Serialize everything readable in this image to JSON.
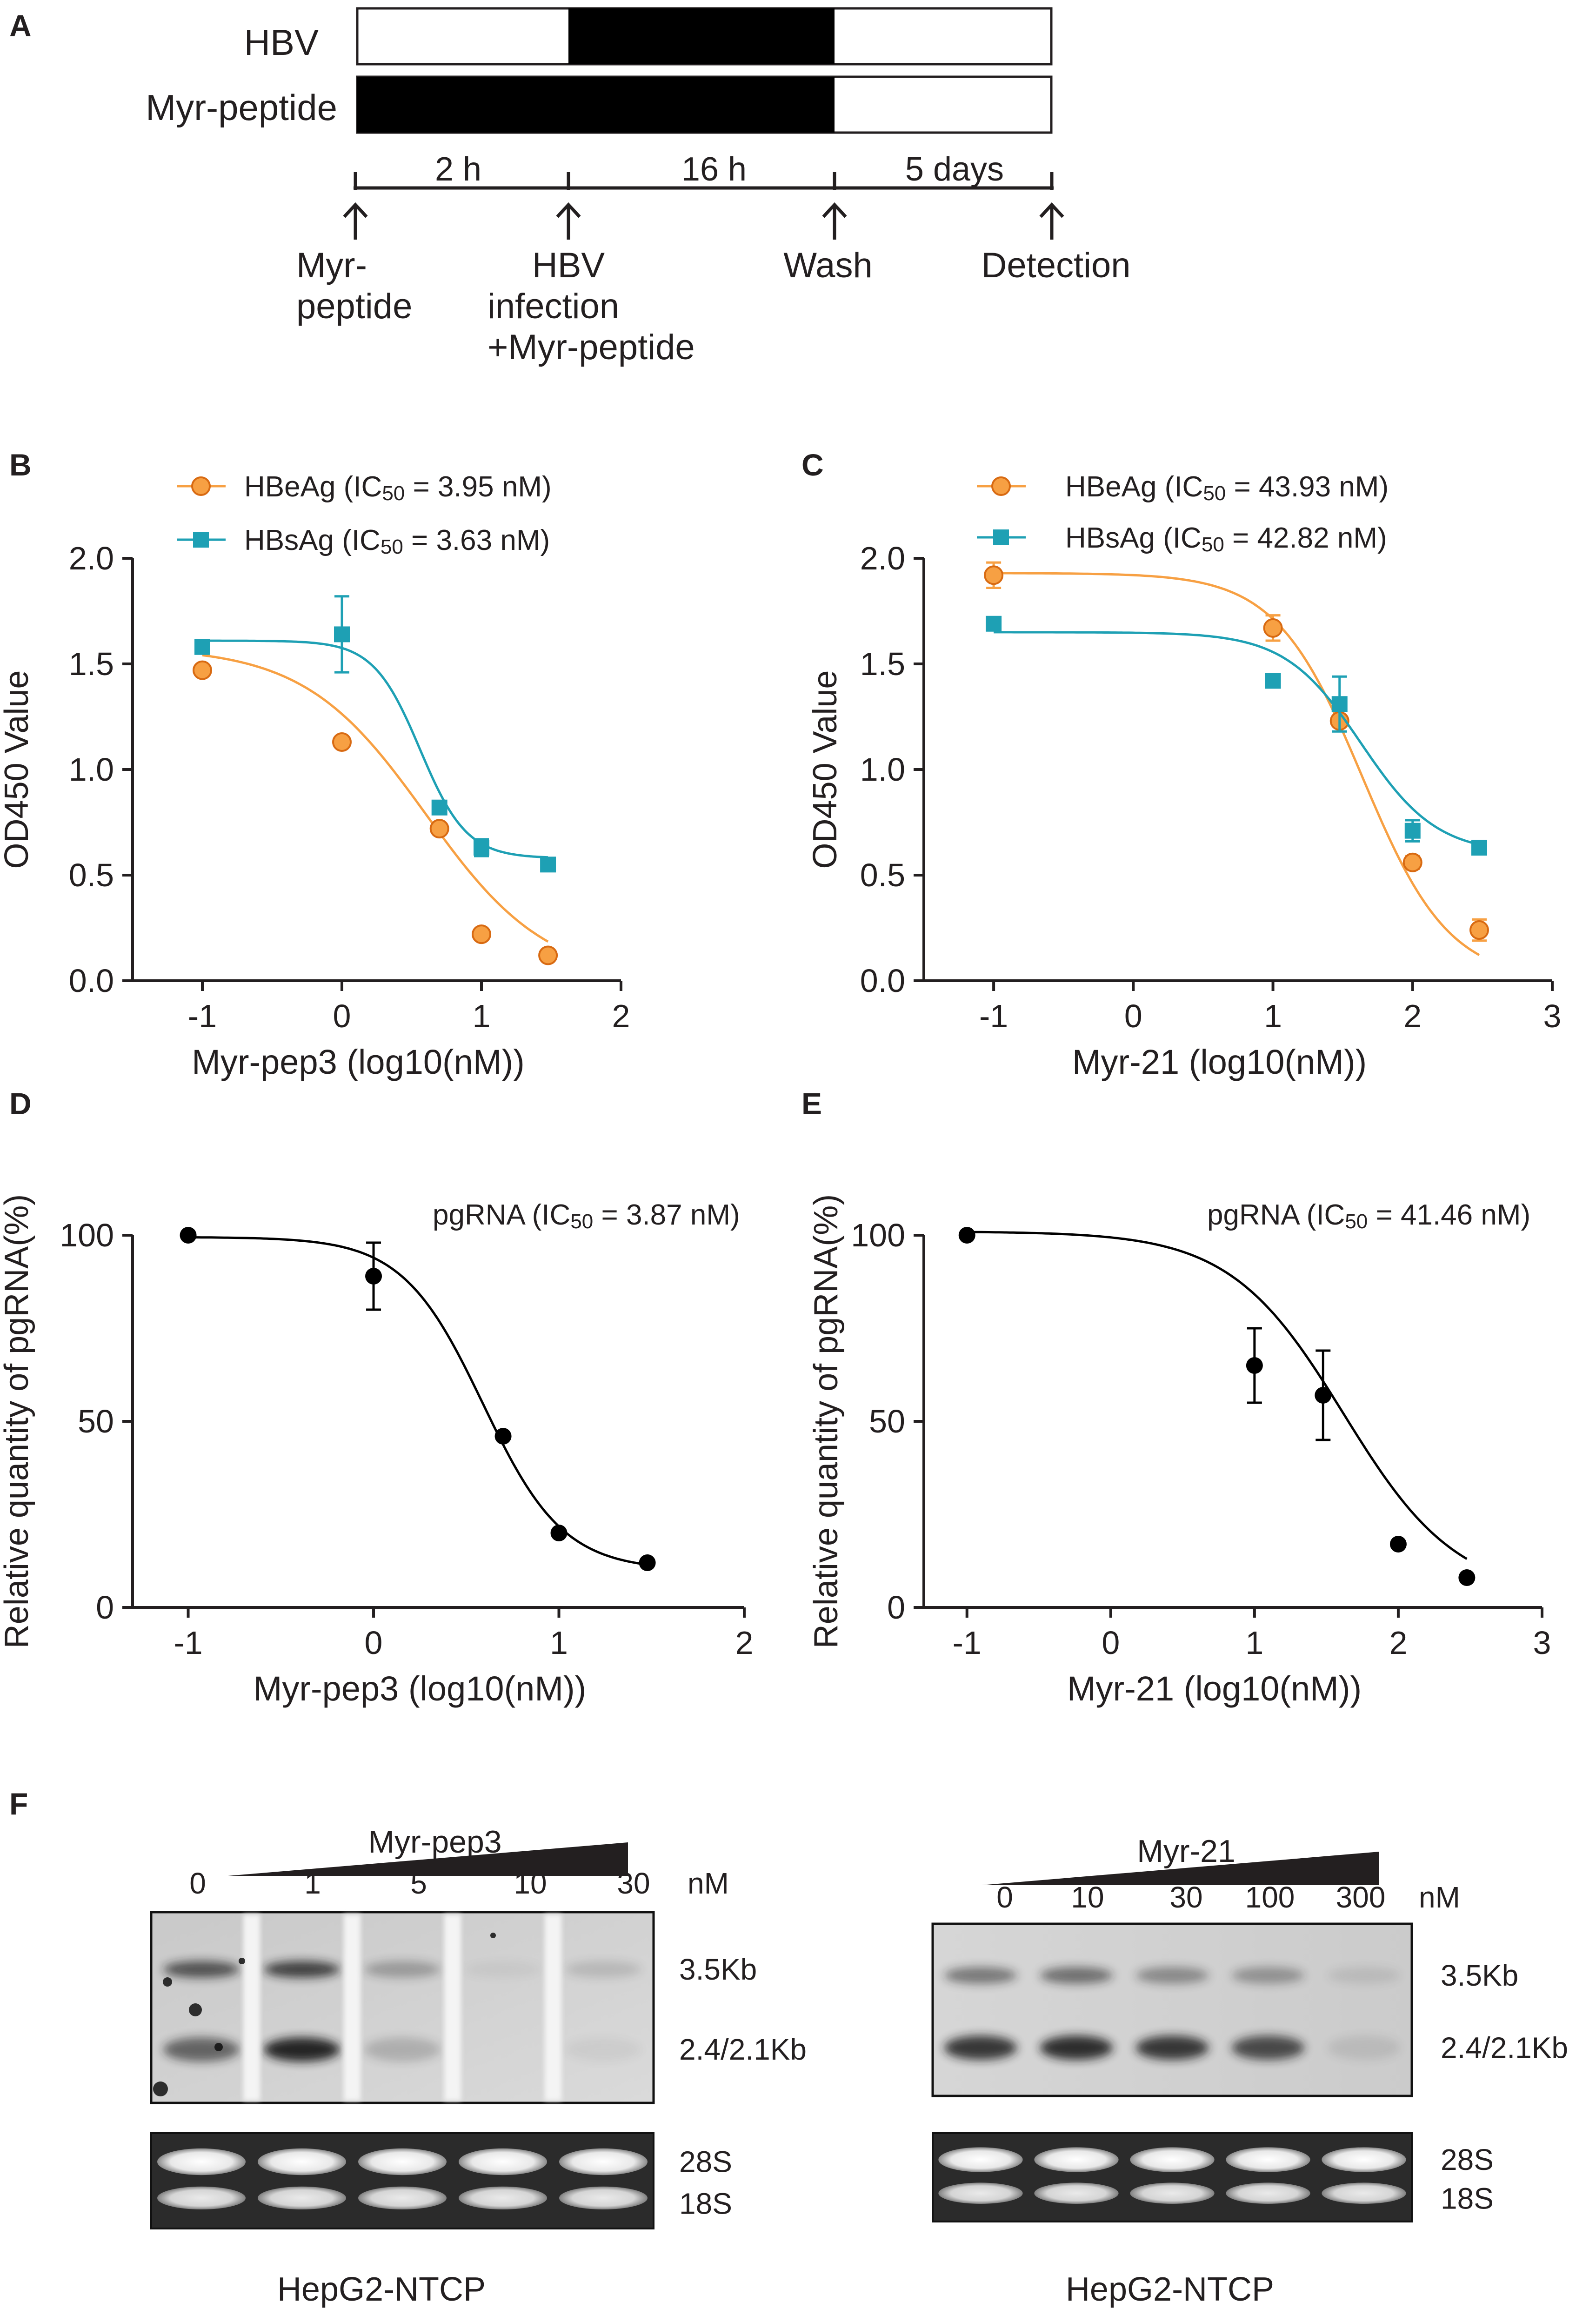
{
  "panel_a": {
    "label": "A",
    "rows": [
      {
        "name": "HBV",
        "filled": [
          2,
          18
        ]
      },
      {
        "name": "Myr-peptide",
        "filled": [
          0,
          18
        ]
      }
    ],
    "durations": [
      "2 h",
      "16 h",
      "5 days"
    ],
    "timepoints": [
      {
        "hours": 0,
        "lines": [
          "Myr-",
          "peptide"
        ]
      },
      {
        "hours": 2,
        "lines": [
          "HBV",
          "infection",
          "+Myr-peptide"
        ]
      },
      {
        "hours": 18,
        "lines": [
          "Wash"
        ]
      },
      {
        "hours": 138,
        "lines": [
          "Detection"
        ]
      }
    ]
  },
  "chart_data": [
    {
      "panel": "B",
      "type": "scatter",
      "xlabel": "Myr-pep3 (log10(nM))",
      "ylabel": "OD450 Value",
      "xlim": [
        -1.5,
        2
      ],
      "ylim": [
        0,
        2
      ],
      "xticks": [
        -1,
        0,
        1,
        2
      ],
      "yticks": [
        0,
        0.5,
        1,
        1.5,
        2
      ],
      "yticklabels": [
        "0.0",
        "0.5",
        "1.0",
        "1.5",
        "2.0"
      ],
      "series": [
        {
          "name": "HBeAg",
          "ic_sub": "50",
          "ic_value": " = 3.95 nM",
          "color": "#f7a043",
          "marker": "circle",
          "x": [
            -1,
            0,
            0.699,
            1,
            1.477
          ],
          "y": [
            1.47,
            1.13,
            0.72,
            0.22,
            0.12
          ],
          "err": [
            0,
            0,
            0,
            0,
            0
          ],
          "fit": {
            "top": 1.58,
            "bottom": 0.0,
            "logic50": 0.6,
            "hill": 1.0
          }
        },
        {
          "name": "HBsAg",
          "ic_sub": "50",
          "ic_value": " = 3.63 nM",
          "color": "#1ea0b4",
          "marker": "square",
          "x": [
            -1,
            0,
            0.699,
            1,
            1.477
          ],
          "y": [
            1.58,
            1.64,
            0.82,
            0.63,
            0.55
          ],
          "err": [
            0,
            0.18,
            0,
            0.04,
            0
          ],
          "fit": {
            "top": 1.61,
            "bottom": 0.58,
            "logic50": 0.56,
            "hill": 2.6
          }
        }
      ]
    },
    {
      "panel": "C",
      "type": "scatter",
      "xlabel": "Myr-21 (log10(nM))",
      "ylabel": "OD450 Value",
      "xlim": [
        -1.5,
        3
      ],
      "ylim": [
        0,
        2
      ],
      "xticks": [
        -1,
        0,
        1,
        2,
        3
      ],
      "yticks": [
        0,
        0.5,
        1,
        1.5,
        2
      ],
      "yticklabels": [
        "0.0",
        "0.5",
        "1.0",
        "1.5",
        "2.0"
      ],
      "series": [
        {
          "name": "HBeAg",
          "ic_sub": "50",
          "ic_value": " = 43.93 nM",
          "color": "#f7a043",
          "marker": "circle",
          "x": [
            -1,
            1,
            1.477,
            2,
            2.477
          ],
          "y": [
            1.92,
            1.67,
            1.23,
            0.56,
            0.24
          ],
          "err": [
            0.06,
            0.06,
            0,
            0.03,
            0.05
          ],
          "fit": {
            "top": 1.93,
            "bottom": 0.0,
            "logic50": 1.64,
            "hill": 1.4
          }
        },
        {
          "name": "HBsAg",
          "ic_sub": "50",
          "ic_value": " = 42.82 nM",
          "color": "#1ea0b4",
          "marker": "square",
          "x": [
            -1,
            1,
            1.477,
            2,
            2.477
          ],
          "y": [
            1.69,
            1.42,
            1.31,
            0.71,
            0.63
          ],
          "err": [
            0,
            0,
            0.13,
            0.05,
            0
          ],
          "fit": {
            "top": 1.65,
            "bottom": 0.6,
            "logic50": 1.63,
            "hill": 1.6
          }
        }
      ]
    },
    {
      "panel": "D",
      "type": "scatter",
      "xlabel": "Myr-pep3 (log10(nM))",
      "ylabel": "Relative quantity of pgRNA(%)",
      "xlim": [
        -1.3,
        2
      ],
      "ylim": [
        0,
        100
      ],
      "xticks": [
        -1,
        0,
        1,
        2
      ],
      "yticks": [
        0,
        50,
        100
      ],
      "yticklabels": [
        "0",
        "50",
        "100"
      ],
      "series": [
        {
          "name": "pgRNA",
          "ic_sub": "50",
          "ic_value": " = 3.87 nM",
          "color": "#000000",
          "marker": "circle",
          "x": [
            -1,
            0,
            0.699,
            1,
            1.477
          ],
          "y": [
            100,
            89,
            46,
            20,
            12
          ],
          "err": [
            0,
            9,
            0,
            0,
            0
          ],
          "fit": {
            "top": 99.5,
            "bottom": 10,
            "logic50": 0.59,
            "hill": 2.0
          }
        }
      ]
    },
    {
      "panel": "E",
      "type": "scatter",
      "xlabel": "Myr-21 (log10(nM))",
      "ylabel": "Relative quantity of pgRNA(%)",
      "xlim": [
        -1.3,
        3
      ],
      "ylim": [
        0,
        100
      ],
      "xticks": [
        -1,
        0,
        1,
        2,
        3
      ],
      "yticks": [
        0,
        50,
        100
      ],
      "yticklabels": [
        "0",
        "50",
        "100"
      ],
      "series": [
        {
          "name": "pgRNA",
          "ic_sub": "50",
          "ic_value": " = 41.46 nM",
          "color": "#000000",
          "marker": "circle",
          "x": [
            -1,
            1,
            1.477,
            2,
            2.477
          ],
          "y": [
            100,
            65,
            57,
            17,
            8
          ],
          "err": [
            0,
            10,
            12,
            0,
            0
          ],
          "fit": {
            "top": 101,
            "bottom": 3,
            "logic50": 1.62,
            "hill": 1.1
          }
        }
      ]
    }
  ],
  "panel_f": {
    "label": "F",
    "cell_line": "HepG2-NTCP",
    "unit": "nM",
    "band_labels": [
      "3.5Kb",
      "2.4/2.1Kb"
    ],
    "rrna_labels": [
      "28S",
      "18S"
    ],
    "blots": [
      {
        "title": "Myr-pep3",
        "doses": [
          "0",
          "1",
          "5",
          "10",
          "30"
        ],
        "upper_band": [
          0.7,
          0.8,
          0.3,
          0.05,
          0.15
        ],
        "lower_band": [
          0.6,
          0.95,
          0.2,
          0.0,
          0.05
        ]
      },
      {
        "title": "Myr-21",
        "doses": [
          "0",
          "10",
          "30",
          "100",
          "300"
        ],
        "upper_band": [
          0.5,
          0.55,
          0.4,
          0.35,
          0.1
        ],
        "lower_band": [
          0.85,
          0.9,
          0.85,
          0.75,
          0.1
        ]
      }
    ]
  },
  "panel_labels": [
    "B",
    "C",
    "D",
    "E"
  ]
}
